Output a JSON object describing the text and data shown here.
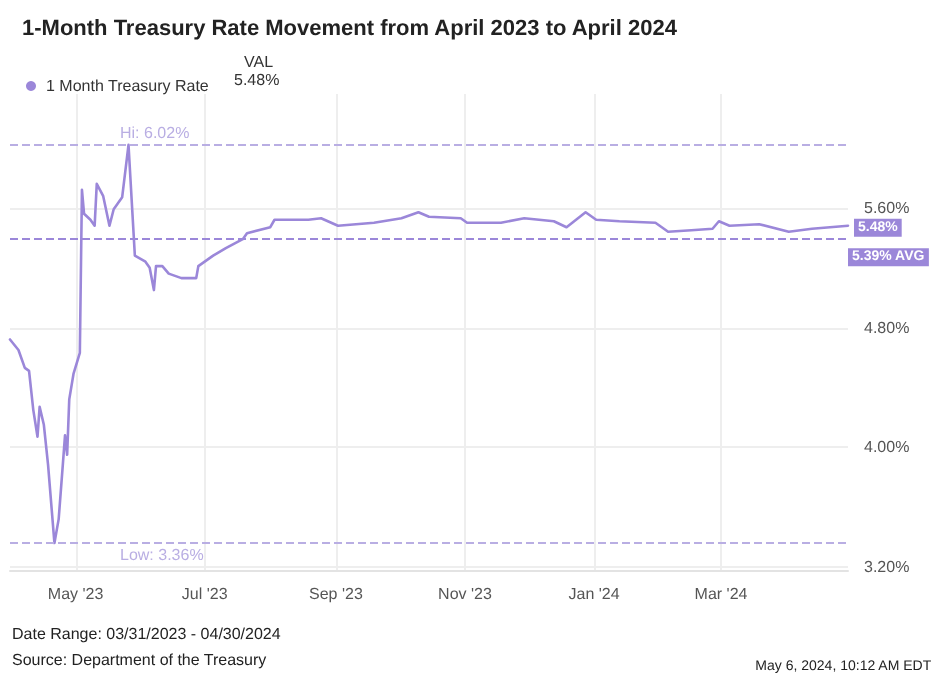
{
  "chart_data": {
    "type": "line",
    "title": "1-Month Treasury Rate Movement from April 2023 to April 2024",
    "legend_title": "VAL",
    "legend": "top left",
    "grid": true,
    "marker": "none",
    "line_style": "solid",
    "xlim": [
      "2023-03-31",
      "2024-04-30"
    ],
    "xticks": [
      {
        "value": "2023-05-01",
        "label": "May '23"
      },
      {
        "value": "2023-07-01",
        "label": "Jul '23"
      },
      {
        "value": "2023-09-01",
        "label": "Sep '23"
      },
      {
        "value": "2023-11-01",
        "label": "Nov '23"
      },
      {
        "value": "2024-01-01",
        "label": "Jan '24"
      },
      {
        "value": "2024-03-01",
        "label": "Mar '24"
      }
    ],
    "ylim": [
      3.18,
      6.36
    ],
    "yticks": [
      {
        "value": 3.2,
        "label": "3.20%"
      },
      {
        "value": 4.0,
        "label": "4.00%"
      },
      {
        "value": 4.8,
        "label": "4.80%"
      },
      {
        "value": 5.6,
        "label": "5.60%"
      }
    ],
    "x": [
      "2023-03-31",
      "2023-04-04",
      "2023-04-07",
      "2023-04-09",
      "2023-04-11",
      "2023-04-13",
      "2023-04-14",
      "2023-04-16",
      "2023-04-18",
      "2023-04-21",
      "2023-04-23",
      "2023-04-25",
      "2023-04-26",
      "2023-04-27",
      "2023-04-28",
      "2023-04-30",
      "2023-05-03",
      "2023-05-04",
      "2023-05-05",
      "2023-05-08",
      "2023-05-10",
      "2023-05-11",
      "2023-05-14",
      "2023-05-17",
      "2023-05-19",
      "2023-05-23",
      "2023-05-26",
      "2023-05-29",
      "2023-06-03",
      "2023-06-05",
      "2023-06-07",
      "2023-06-08",
      "2023-06-11",
      "2023-06-14",
      "2023-06-20",
      "2023-06-27",
      "2023-06-28",
      "2023-07-05",
      "2023-07-11",
      "2023-07-19",
      "2023-07-21",
      "2023-08-01",
      "2023-08-03",
      "2023-08-10",
      "2023-08-19",
      "2023-08-25",
      "2023-09-02",
      "2023-09-19",
      "2023-10-02",
      "2023-10-10",
      "2023-10-15",
      "2023-10-30",
      "2023-11-02",
      "2023-11-18",
      "2023-11-29",
      "2023-12-13",
      "2023-12-19",
      "2023-12-28",
      "2024-01-02",
      "2024-01-13",
      "2024-01-30",
      "2024-02-05",
      "2024-02-16",
      "2024-02-26",
      "2024-02-29",
      "2024-03-05",
      "2024-03-19",
      "2024-04-02",
      "2024-04-13",
      "2024-04-30"
    ],
    "series": [
      {
        "name": "1 Month Treasury Rate",
        "color": "#9b87d9",
        "values": [
          4.72,
          4.65,
          4.53,
          4.51,
          4.25,
          4.07,
          4.27,
          4.15,
          3.88,
          3.36,
          3.52,
          3.89,
          4.08,
          3.95,
          4.32,
          4.49,
          4.63,
          5.72,
          5.56,
          5.52,
          5.48,
          5.76,
          5.68,
          5.48,
          5.59,
          5.67,
          6.02,
          5.28,
          5.24,
          5.2,
          5.05,
          5.21,
          5.21,
          5.16,
          5.13,
          5.13,
          5.21,
          5.28,
          5.33,
          5.39,
          5.43,
          5.47,
          5.52,
          5.52,
          5.52,
          5.53,
          5.48,
          5.5,
          5.53,
          5.57,
          5.54,
          5.53,
          5.5,
          5.5,
          5.53,
          5.51,
          5.47,
          5.57,
          5.52,
          5.51,
          5.5,
          5.44,
          5.45,
          5.46,
          5.51,
          5.48,
          5.49,
          5.44,
          5.46,
          5.48
        ]
      }
    ],
    "ref_lines": [
      {
        "axis": "y",
        "value": 6.02,
        "label": "Hi: 6.02%",
        "color": "#b9aee3",
        "line_style": "dashed"
      },
      {
        "axis": "y",
        "value": 3.36,
        "label": "Low: 3.36%",
        "color": "#b9aee3",
        "line_style": "dashed"
      },
      {
        "axis": "y",
        "value": 5.39,
        "label": "5.39% AVG",
        "color": "#9b87d9",
        "line_style": "dashed"
      }
    ],
    "annotations": [
      "5.48%",
      {
        "text": "5.48%",
        "x": "2024-04-30",
        "y": 5.48
      },
      "Date Range: 03/31/2023 - 04/30/2024",
      "Source: Department of the Treasury",
      "May 6, 2024, 10:12 AM EDT"
    ]
  }
}
